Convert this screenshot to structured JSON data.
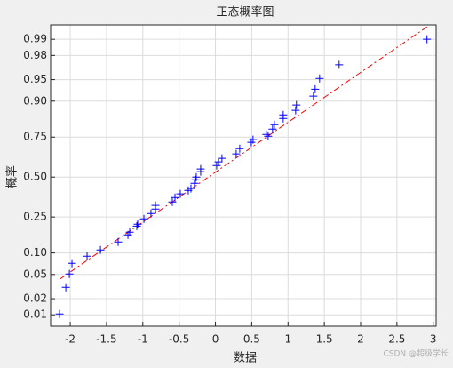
{
  "chart_data": {
    "type": "normplot",
    "title": "正态概率图",
    "xlabel": "数据",
    "ylabel": "概率",
    "watermark": "CSDN @超级学长",
    "x": [
      -2.147,
      -2.061,
      -2.012,
      -1.976,
      -1.768,
      -1.584,
      -1.34,
      -1.205,
      -1.181,
      -1.083,
      -1.071,
      -0.985,
      -0.888,
      -0.826,
      -0.826,
      -0.594,
      -0.557,
      -0.484,
      -0.374,
      -0.337,
      -0.289,
      -0.276,
      -0.264,
      -0.203,
      -0.203,
      0.017,
      0.042,
      0.09,
      0.286,
      0.335,
      0.494,
      0.518,
      0.726,
      0.701,
      0.787,
      0.812,
      0.934,
      0.934,
      1.105,
      1.116,
      1.35,
      1.374,
      1.435,
      1.704,
      2.914
    ],
    "values": [
      0.0104,
      0.0313,
      0.0508,
      0.0727,
      0.0908,
      0.109,
      0.1365,
      0.1645,
      0.176,
      0.204,
      0.213,
      0.24,
      0.269,
      0.294,
      0.316,
      0.337,
      0.365,
      0.388,
      0.411,
      0.423,
      0.458,
      0.482,
      0.5,
      0.536,
      0.554,
      0.577,
      0.601,
      0.624,
      0.652,
      0.684,
      0.721,
      0.736,
      0.755,
      0.764,
      0.791,
      0.812,
      0.839,
      0.853,
      0.87,
      0.888,
      0.914,
      0.931,
      0.952,
      0.971,
      0.99
    ],
    "color": "#0000ff",
    "reference_line": {
      "x": [
        -2.147,
        2.914
      ],
      "values": [
        0.0421,
        0.9944
      ],
      "color": "#ff0000"
    },
    "xlim": [
      -2.27,
      3.04
    ],
    "xticks": [
      -2,
      -1.5,
      -1,
      -0.5,
      0,
      0.5,
      1,
      1.5,
      2,
      2.5,
      3
    ],
    "ylim": [
      0.0059,
      0.9949
    ],
    "yscale": "normal-probability",
    "yticks": [
      0.01,
      0.02,
      0.05,
      {
        "value": 0.1,
        "label": "0.10"
      },
      0.25,
      {
        "value": 0.5,
        "label": "0.50"
      },
      0.75,
      {
        "value": 0.9,
        "label": "0.90"
      },
      0.95,
      0.98,
      0.99
    ],
    "grid": true
  }
}
